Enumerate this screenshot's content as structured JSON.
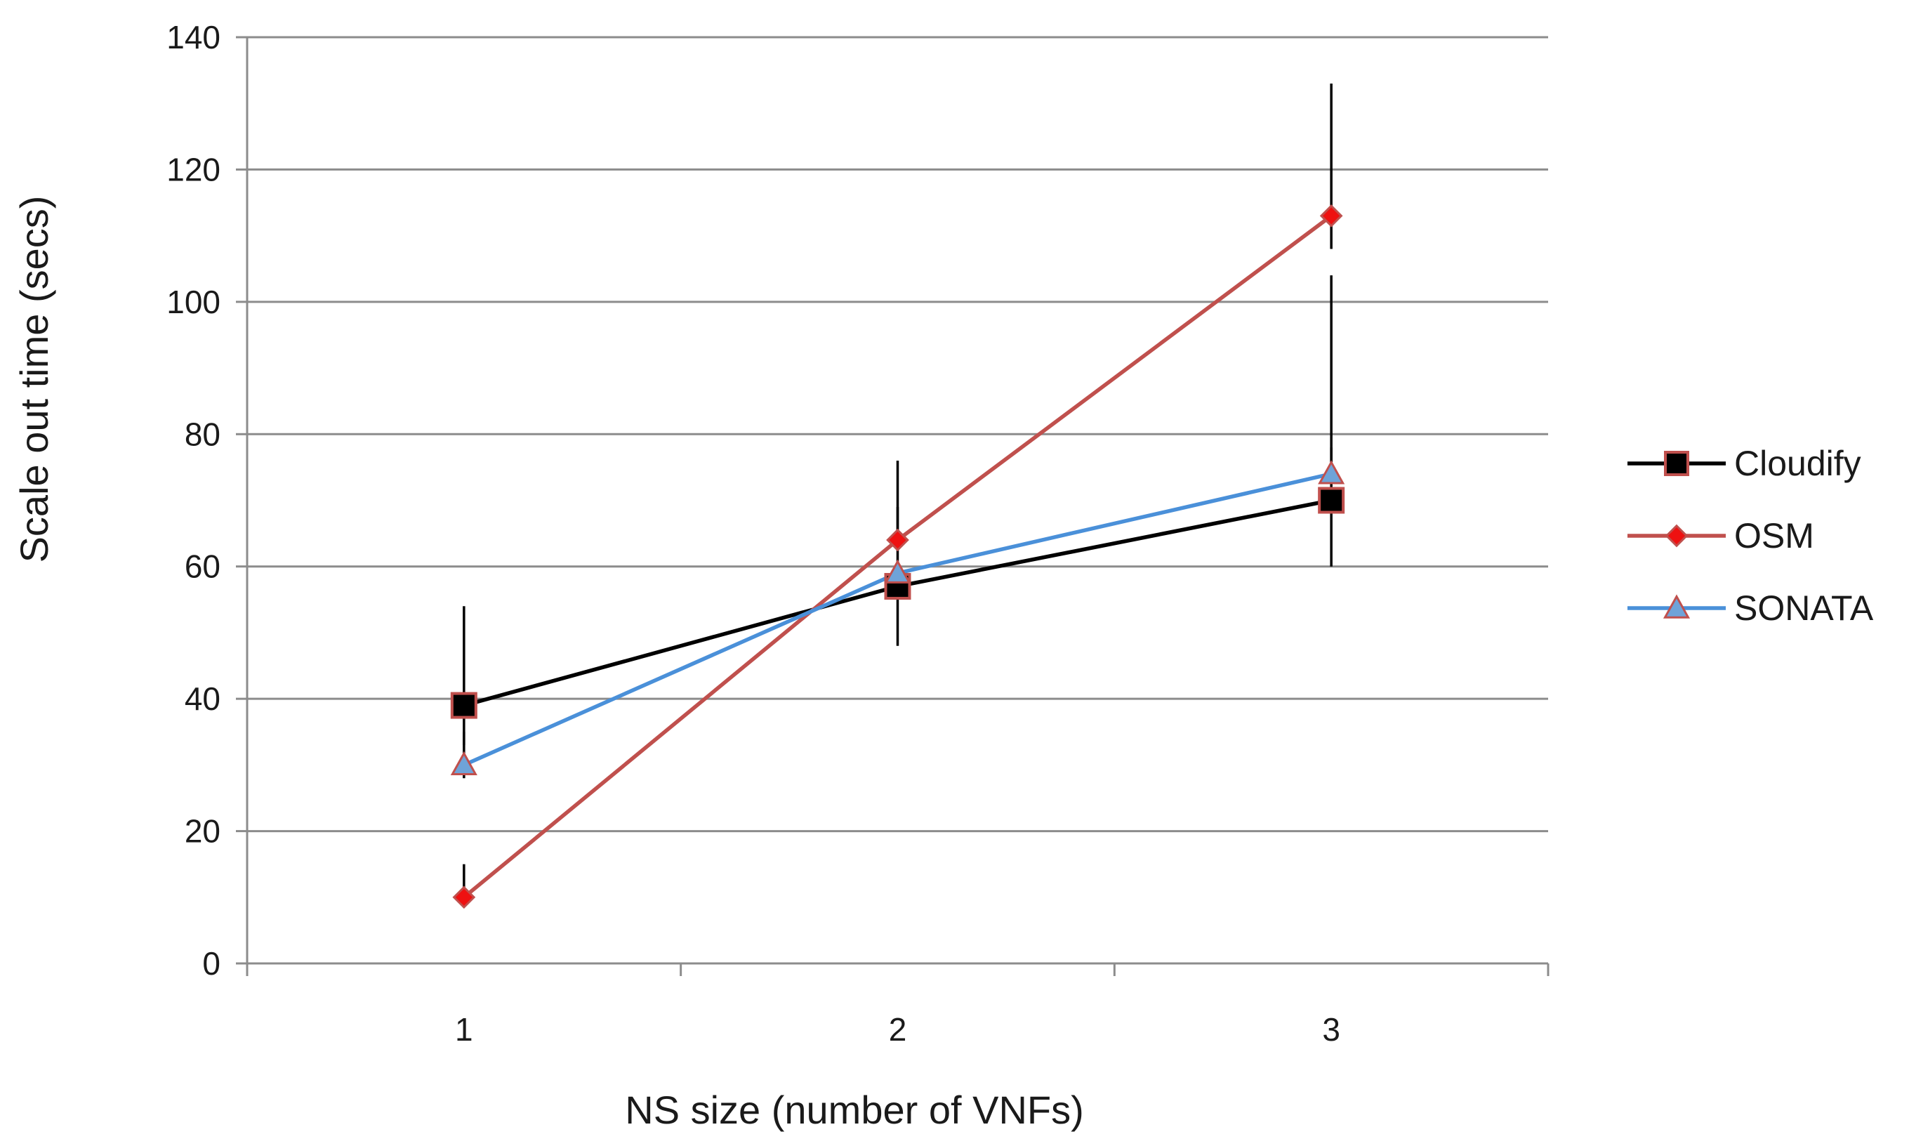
{
  "chart_data": {
    "type": "line",
    "title": "",
    "xlabel": "NS size (number of VNFs)",
    "ylabel": "Scale out time (secs)",
    "categories": [
      "1",
      "2",
      "3"
    ],
    "ylim": [
      0,
      140
    ],
    "yticks": [
      0,
      20,
      40,
      60,
      80,
      100,
      120,
      140
    ],
    "grid": true,
    "legend_position": "right",
    "series": [
      {
        "name": "Cloudify",
        "values": [
          39,
          57,
          70
        ],
        "error_low": [
          33,
          48,
          60
        ],
        "error_high": [
          54,
          76,
          78
        ],
        "color": "#000000",
        "marker": "square",
        "marker_fill": "#000000",
        "marker_stroke": "#c0504d"
      },
      {
        "name": "OSM",
        "values": [
          10,
          64,
          113
        ],
        "error_low": [
          10,
          64,
          108
        ],
        "error_high": [
          15,
          69,
          133
        ],
        "color": "#c0504d",
        "marker": "diamond",
        "marker_fill": "#ee1111",
        "marker_stroke": "#c0504d"
      },
      {
        "name": "SONATA",
        "values": [
          30,
          59,
          74
        ],
        "error_low": [
          28,
          57,
          74
        ],
        "error_high": [
          35,
          59,
          104
        ],
        "color": "#4a90d9",
        "marker": "triangle",
        "marker_fill": "#6fa3d8",
        "marker_stroke": "#c0504d"
      }
    ]
  }
}
